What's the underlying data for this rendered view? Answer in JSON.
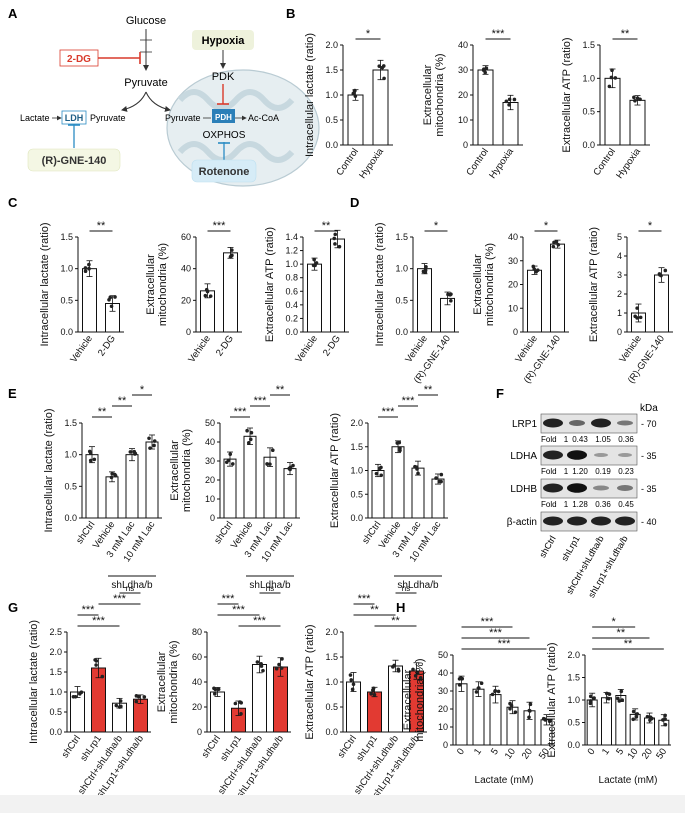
{
  "panels": {
    "A": {
      "letter": "A",
      "glucose": "Glucose",
      "pyruvate_main": "Pyruvate",
      "inhibitor_2dg": "2-DG",
      "hypoxia": "Hypoxia",
      "pdk": "PDK",
      "lactate": "Lactate",
      "ldh": "LDH",
      "pyruvate_left": "Pyruvate",
      "pyruvate_mito": "Pyruvate",
      "pdh": "PDH",
      "acoa": "Ac-CoA",
      "oxphos": "OXPHOS",
      "gne": "(R)-GNE-140",
      "rotenone": "Rotenone",
      "colors": {
        "red": "#d93a2b",
        "blue": "#2b8cc4",
        "yellow_box": "#f4f7e4",
        "blue_box": "#d6ecf7",
        "mito": "#e6eef1"
      }
    },
    "B": {
      "letter": "B"
    },
    "C": {
      "letter": "C"
    },
    "D": {
      "letter": "D"
    },
    "E": {
      "letter": "E"
    },
    "F": {
      "letter": "F",
      "kda": "kDa",
      "rows": [
        {
          "name": "LRP1",
          "mw": "70",
          "fold": [
            "Fold",
            "1",
            "0.43",
            "1.05",
            "0.36"
          ]
        },
        {
          "name": "LDHA",
          "mw": "35",
          "fold": [
            "Fold",
            "1",
            "1.20",
            "0.19",
            "0.23"
          ]
        },
        {
          "name": "LDHB",
          "mw": "35",
          "fold": [
            "Fold",
            "1",
            "1.28",
            "0.36",
            "0.45"
          ]
        },
        {
          "name": "β-actin",
          "mw": "40",
          "fold": null
        }
      ],
      "lanes": [
        "shCtrl",
        "shLrp1",
        "shCtrl+shLdha/b",
        "shLrp1+shLdha/b"
      ]
    },
    "G": {
      "letter": "G"
    },
    "H": {
      "letter": "H"
    }
  },
  "chart_data": [
    {
      "id": "B1",
      "type": "bar",
      "ylabel": "Intracellular lactate (ratio)",
      "categories": [
        "Control",
        "Hypoxia"
      ],
      "values": [
        1.0,
        1.5
      ],
      "ylim": [
        0,
        2
      ],
      "yticks": [
        "0.0",
        "0.5",
        "1.0",
        "1.5",
        "2.0"
      ],
      "sig": [
        {
          "from": 0,
          "to": 1,
          "text": "*"
        }
      ]
    },
    {
      "id": "B2",
      "type": "bar",
      "ylabel": "Extracellular mitochondria (%)",
      "categories": [
        "Control",
        "Hypoxia"
      ],
      "values": [
        30,
        17
      ],
      "ylim": [
        0,
        40
      ],
      "yticks": [
        "0",
        "10",
        "20",
        "30",
        "40"
      ],
      "sig": [
        {
          "from": 0,
          "to": 1,
          "text": "***"
        }
      ]
    },
    {
      "id": "B3",
      "type": "bar",
      "ylabel": "Extracellular ATP (ratio)",
      "categories": [
        "Control",
        "Hypoxia"
      ],
      "values": [
        1.0,
        0.67
      ],
      "ylim": [
        0,
        1.5
      ],
      "yticks": [
        "0.0",
        "0.5",
        "1.0",
        "1.5"
      ],
      "sig": [
        {
          "from": 0,
          "to": 1,
          "text": "**"
        }
      ]
    },
    {
      "id": "C1",
      "type": "bar",
      "ylabel": "Intracellular lactate (ratio)",
      "categories": [
        "Vehicle",
        "2-DG"
      ],
      "values": [
        1.0,
        0.45
      ],
      "ylim": [
        0,
        1.5
      ],
      "yticks": [
        "0.0",
        "0.5",
        "1.0",
        "1.5"
      ],
      "sig": [
        {
          "from": 0,
          "to": 1,
          "text": "**"
        }
      ]
    },
    {
      "id": "C2",
      "type": "bar",
      "ylabel": "Extracellular mitochondria (%)",
      "categories": [
        "Vehicle",
        "2-DG"
      ],
      "values": [
        26,
        50
      ],
      "ylim": [
        0,
        60
      ],
      "yticks": [
        "0",
        "20",
        "40",
        "60"
      ],
      "sig": [
        {
          "from": 0,
          "to": 1,
          "text": "***"
        }
      ]
    },
    {
      "id": "C3",
      "type": "bar",
      "ylabel": "Extracellular ATP (ratio)",
      "categories": [
        "Vehicle",
        "2-DG"
      ],
      "values": [
        1.0,
        1.37
      ],
      "ylim": [
        0,
        1.4
      ],
      "yticks": [
        "0.0",
        "0.2",
        "0.4",
        "0.6",
        "0.8",
        "1.0",
        "1.2",
        "1.4"
      ],
      "sig": [
        {
          "from": 0,
          "to": 1,
          "text": "**"
        }
      ]
    },
    {
      "id": "D1",
      "type": "bar",
      "ylabel": "Intracellular lactate (ratio)",
      "categories": [
        "Vehicle",
        "(R)-GNE-140"
      ],
      "values": [
        1.0,
        0.53
      ],
      "ylim": [
        0,
        1.5
      ],
      "yticks": [
        "0.0",
        "0.5",
        "1.0",
        "1.5"
      ],
      "sig": [
        {
          "from": 0,
          "to": 1,
          "text": "*"
        }
      ]
    },
    {
      "id": "D2",
      "type": "bar",
      "ylabel": "Extracellular mitochondria (%)",
      "categories": [
        "Vehicle",
        "(R)-GNE-140"
      ],
      "values": [
        26,
        37
      ],
      "ylim": [
        0,
        40
      ],
      "yticks": [
        "0",
        "10",
        "20",
        "30",
        "40"
      ],
      "sig": [
        {
          "from": 0,
          "to": 1,
          "text": "*"
        }
      ]
    },
    {
      "id": "D3",
      "type": "bar",
      "ylabel": "Extracellular ATP (ratio)",
      "categories": [
        "Vehicle",
        "(R)-GNE-140"
      ],
      "values": [
        1.0,
        3.0
      ],
      "ylim": [
        0,
        5
      ],
      "yticks": [
        "0",
        "1",
        "2",
        "3",
        "4",
        "5"
      ],
      "sig": [
        {
          "from": 0,
          "to": 1,
          "text": "*"
        }
      ]
    },
    {
      "id": "E1",
      "type": "bar",
      "ylabel": "Intracellular lactate (ratio)",
      "categories": [
        "shCtrl",
        "Vehicle",
        "3 mM Lac",
        "10 mM Lac"
      ],
      "values": [
        1.0,
        0.65,
        1.0,
        1.2
      ],
      "ylim": [
        0,
        1.5
      ],
      "yticks": [
        "0.0",
        "0.5",
        "1.0",
        "1.5"
      ],
      "group_label": "shLdha/b",
      "sig": [
        {
          "from": 0,
          "to": 1,
          "text": "**"
        },
        {
          "from": 1,
          "to": 2,
          "text": "**"
        },
        {
          "from": 2,
          "to": 3,
          "text": "*"
        }
      ]
    },
    {
      "id": "E2",
      "type": "bar",
      "ylabel": "Extracellular mitochondria (%)",
      "categories": [
        "shCtrl",
        "Vehicle",
        "3 mM Lac",
        "10 mM Lac"
      ],
      "values": [
        31,
        43,
        32,
        26
      ],
      "ylim": [
        0,
        50
      ],
      "yticks": [
        "0",
        "10",
        "20",
        "30",
        "40",
        "50"
      ],
      "group_label": "shLdha/b",
      "sig": [
        {
          "from": 0,
          "to": 1,
          "text": "***"
        },
        {
          "from": 1,
          "to": 2,
          "text": "***"
        },
        {
          "from": 2,
          "to": 3,
          "text": "**"
        }
      ]
    },
    {
      "id": "E3",
      "type": "bar",
      "ylabel": "Extracellular ATP (ratio)",
      "categories": [
        "shCtrl",
        "Vehicle",
        "3 mM Lac",
        "10 mM Lac"
      ],
      "values": [
        1.0,
        1.5,
        1.05,
        0.82
      ],
      "ylim": [
        0,
        2
      ],
      "yticks": [
        "0.0",
        "0.5",
        "1.0",
        "1.5",
        "2.0"
      ],
      "group_label": "shLdha/b",
      "sig": [
        {
          "from": 0,
          "to": 1,
          "text": "***"
        },
        {
          "from": 1,
          "to": 2,
          "text": "***"
        },
        {
          "from": 2,
          "to": 3,
          "text": "**"
        }
      ]
    },
    {
      "id": "G1",
      "type": "bar",
      "ylabel": "Intracellular lactate (ratio)",
      "categories": [
        "shCtrl",
        "shLrp1",
        "shCtrl+shLdha/b",
        "shLrp1+shLdha/b"
      ],
      "values": [
        1.0,
        1.6,
        0.72,
        0.82
      ],
      "ylim": [
        0,
        2.5
      ],
      "yticks": [
        "0.0",
        "0.5",
        "1.0",
        "1.5",
        "2.0",
        "2.5"
      ],
      "sig": [
        {
          "from": 0,
          "to": 2,
          "text": "***"
        },
        {
          "from": 0,
          "to": 1,
          "text": "***"
        },
        {
          "from": 1,
          "to": 3,
          "text": "***"
        },
        {
          "from": 2,
          "to": 3,
          "text": "ns"
        }
      ]
    },
    {
      "id": "G2",
      "type": "bar",
      "ylabel": "Extracellular mitochondria (%)",
      "categories": [
        "shCtrl",
        "shLrp1",
        "shCtrl+shLdha/b",
        "shLrp1+shLdha/b"
      ],
      "values": [
        32,
        19,
        54,
        52
      ],
      "ylim": [
        0,
        80
      ],
      "yticks": [
        "0",
        "20",
        "40",
        "60",
        "80"
      ],
      "sig": [
        {
          "from": 1,
          "to": 3,
          "text": "***"
        },
        {
          "from": 0,
          "to": 2,
          "text": "***"
        },
        {
          "from": 0,
          "to": 1,
          "text": "***"
        },
        {
          "from": 2,
          "to": 3,
          "text": "ns"
        }
      ]
    },
    {
      "id": "G3",
      "type": "bar",
      "ylabel": "Extracellular ATP (ratio)",
      "categories": [
        "shCtrl",
        "shLrp1",
        "shCtrl+shLdha/b",
        "shLrp1+shLdha/b"
      ],
      "values": [
        1.0,
        0.8,
        1.32,
        1.22
      ],
      "ylim": [
        0,
        2
      ],
      "yticks": [
        "0.0",
        "0.5",
        "1.0",
        "1.5",
        "2.0"
      ],
      "sig": [
        {
          "from": 1,
          "to": 3,
          "text": "**"
        },
        {
          "from": 0,
          "to": 2,
          "text": "**"
        },
        {
          "from": 0,
          "to": 1,
          "text": "***"
        },
        {
          "from": 2,
          "to": 3,
          "text": "ns"
        }
      ]
    },
    {
      "id": "H1",
      "type": "bar",
      "ylabel": "Extracellular mitochondria (%)",
      "xlabel": "Lactate (mM)",
      "categories": [
        "0",
        "1",
        "5",
        "10",
        "20",
        "50"
      ],
      "values": [
        34,
        31,
        28,
        21,
        19,
        14
      ],
      "ylim": [
        0,
        50
      ],
      "yticks": [
        "0",
        "10",
        "20",
        "30",
        "40",
        "50"
      ],
      "sig": [
        {
          "from": 0,
          "to": 5,
          "text": "***"
        },
        {
          "from": 0,
          "to": 4,
          "text": "***"
        },
        {
          "from": 0,
          "to": 3,
          "text": "***"
        }
      ]
    },
    {
      "id": "H2",
      "type": "bar",
      "ylabel": "Extracellular ATP (ratio)",
      "xlabel": "Lactate (mM)",
      "categories": [
        "0",
        "1",
        "5",
        "10",
        "20",
        "50"
      ],
      "values": [
        1.0,
        1.05,
        1.1,
        0.68,
        0.6,
        0.55
      ],
      "ylim": [
        0,
        2
      ],
      "yticks": [
        "0.0",
        "0.5",
        "1.0",
        "1.5",
        "2.0"
      ],
      "sig": [
        {
          "from": 0,
          "to": 5,
          "text": "**"
        },
        {
          "from": 0,
          "to": 4,
          "text": "**"
        },
        {
          "from": 0,
          "to": 3,
          "text": "*"
        }
      ]
    }
  ]
}
